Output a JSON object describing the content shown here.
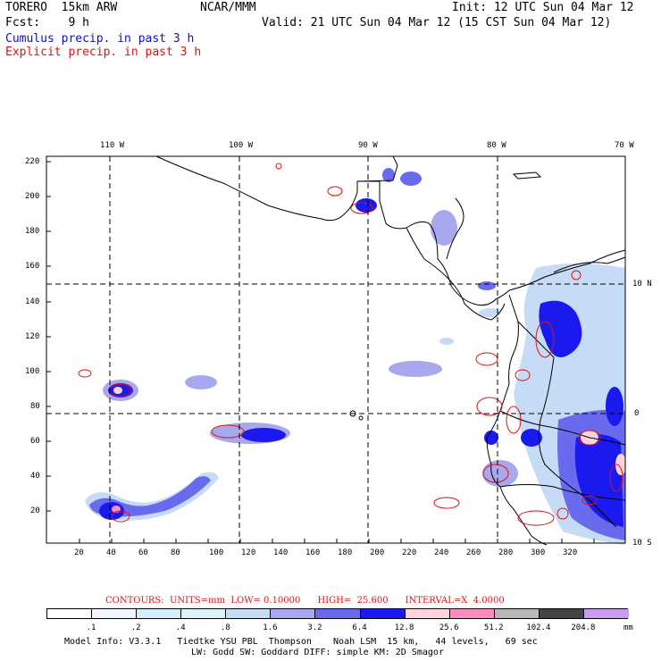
{
  "header": {
    "model": "TORERO  15km ARW",
    "org": "NCAR/MMM",
    "init": "Init: 12 UTC Sun 04 Mar 12",
    "fcst": "Fcst:    9 h",
    "valid": "Valid: 21 UTC Sun 04 Mar 12 (15 CST Sun 04 Mar 12)",
    "cumulus": "Cumulus precip. in past 3 h",
    "explicit": "Explicit precip. in past 3 h"
  },
  "axes": {
    "lon_labels": [
      "110 W",
      "100 W",
      "90 W",
      "80 W",
      "70 W"
    ],
    "lat_labels": [
      "10 N",
      "0",
      "10 S"
    ],
    "x_ticks": [
      "20",
      "40",
      "60",
      "80",
      "100",
      "120",
      "140",
      "160",
      "180",
      "200",
      "220",
      "240",
      "260",
      "280",
      "300",
      "320"
    ],
    "y_ticks": [
      "220",
      "200",
      "180",
      "160",
      "140",
      "120",
      "100",
      "80",
      "60",
      "40",
      "20"
    ]
  },
  "contours": {
    "label": "CONTOURS:  UNITS=mm  LOW= 0.10000      HIGH=  25.600      INTERVAL=X  4.0000"
  },
  "colorbar": {
    "labels": [
      ".1",
      ".2",
      ".4",
      ".8",
      "1.6",
      "3.2",
      "6.4",
      "12.8",
      "25.6",
      "51.2",
      "102.4",
      "204.8"
    ],
    "unit": "mm",
    "colors": [
      "#ffffff",
      "#eef6ff",
      "#d6eefc",
      "#dcf4f8",
      "#c6dcf6",
      "#a8a8ee",
      "#6a6aee",
      "#1a1af0",
      "#ffd4dc",
      "#ff8cc0",
      "#b8b8b8",
      "#444444",
      "#cc9cf4"
    ]
  },
  "footer": {
    "line1": "Model Info: V3.3.1   Tiedtke YSU PBL  Thompson    Noah LSM  15 km,   44 levels,   69 sec",
    "line2": "LW: Godd SW: Goddard DIFF: simple KM: 2D Smagor"
  }
}
